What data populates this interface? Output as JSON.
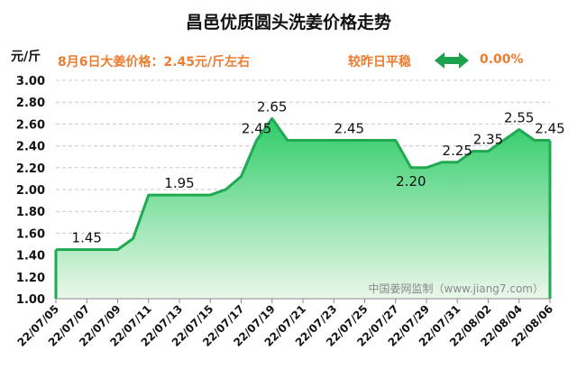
{
  "header": {
    "title": "昌邑优质圆头洗姜价格走势",
    "unit": "元/斤",
    "price_note": "8月6日大姜价格：2.45元/斤左右",
    "compare_label": "较昨日平稳",
    "compare_value": "0.00%"
  },
  "watermark": "中国姜网监制（www.jiang7.com）",
  "colors": {
    "accent": "#ec7c30",
    "line": "#1faa52",
    "fill_top": "#2ecc67",
    "fill_bottom": "#eaf7ea",
    "grid": "#c8c8c8",
    "arrow": "#1ca24c"
  },
  "chart_data": {
    "type": "area",
    "ylim": [
      1.0,
      3.0
    ],
    "yticks": [
      "1.00",
      "1.20",
      "1.40",
      "1.60",
      "1.80",
      "2.00",
      "2.20",
      "2.40",
      "2.60",
      "2.80",
      "3.00"
    ],
    "x": [
      "22/07/05",
      "22/07/06",
      "22/07/07",
      "22/07/08",
      "22/07/09",
      "22/07/10",
      "22/07/11",
      "22/07/12",
      "22/07/13",
      "22/07/14",
      "22/07/15",
      "22/07/16",
      "22/07/17",
      "22/07/18",
      "22/07/19",
      "22/07/20",
      "22/07/21",
      "22/07/22",
      "22/07/23",
      "22/07/24",
      "22/07/25",
      "22/07/26",
      "22/07/27",
      "22/07/28",
      "22/07/29",
      "22/07/30",
      "22/07/31",
      "22/08/01",
      "22/08/02",
      "22/08/03",
      "22/08/04",
      "22/08/05",
      "22/08/06"
    ],
    "values": [
      1.45,
      1.45,
      1.45,
      1.45,
      1.45,
      1.55,
      1.95,
      1.95,
      1.95,
      1.95,
      1.95,
      2.0,
      2.12,
      2.45,
      2.65,
      2.45,
      2.45,
      2.45,
      2.45,
      2.45,
      2.45,
      2.45,
      2.45,
      2.2,
      2.2,
      2.25,
      2.25,
      2.35,
      2.35,
      2.45,
      2.55,
      2.45,
      2.45
    ],
    "xtick_labels": [
      "22/07/05",
      "22/07/07",
      "22/07/09",
      "22/07/11",
      "22/07/13",
      "22/07/15",
      "22/07/17",
      "22/07/19",
      "22/07/21",
      "22/07/23",
      "22/07/25",
      "22/07/27",
      "22/07/29",
      "22/07/31",
      "22/08/02",
      "22/08/04",
      "22/08/06"
    ],
    "data_labels": [
      {
        "date": "22/07/07",
        "value": 1.45,
        "text": "1.45"
      },
      {
        "date": "22/07/13",
        "value": 1.95,
        "text": "1.95"
      },
      {
        "date": "22/07/18",
        "value": 2.45,
        "text": "2.45"
      },
      {
        "date": "22/07/19",
        "value": 2.65,
        "text": "2.65"
      },
      {
        "date": "22/07/24",
        "value": 2.45,
        "text": "2.45"
      },
      {
        "date": "22/07/28",
        "value": 2.2,
        "text": "2.20"
      },
      {
        "date": "22/07/31",
        "value": 2.25,
        "text": "2.25"
      },
      {
        "date": "22/08/02",
        "value": 2.35,
        "text": "2.35"
      },
      {
        "date": "22/08/04",
        "value": 2.55,
        "text": "2.55"
      },
      {
        "date": "22/08/06",
        "value": 2.45,
        "text": "2.45"
      }
    ],
    "grid": true
  }
}
